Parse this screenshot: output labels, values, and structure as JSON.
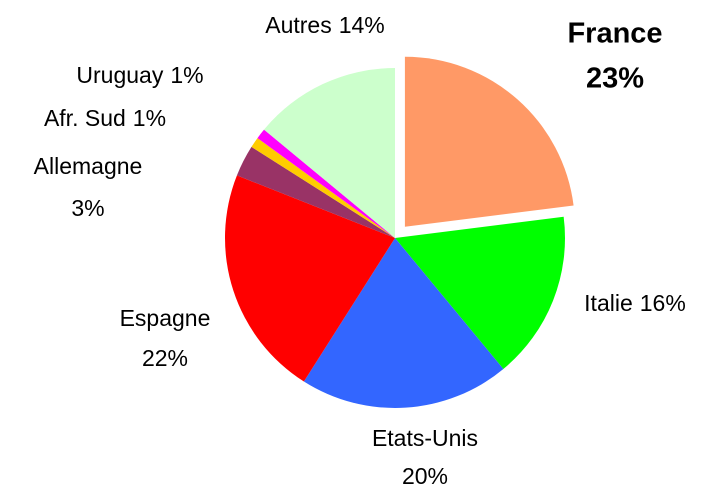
{
  "chart_data": {
    "type": "pie",
    "categories": [
      "France",
      "Italie",
      "Etats-Unis",
      "Espagne",
      "Allemagne",
      "Afr. Sud",
      "Uruguay",
      "Autres"
    ],
    "values": [
      23,
      16,
      20,
      22,
      3,
      1,
      1,
      14
    ],
    "value_labels": [
      "23%",
      "16%",
      "20%",
      "22%",
      "3%",
      "1%",
      "1%",
      "14%"
    ],
    "colors": [
      "#ff9966",
      "#00ff00",
      "#3366ff",
      "#ff0000",
      "#993366",
      "#ffcc00",
      "#ff00ff",
      "#ccffcc"
    ]
  }
}
